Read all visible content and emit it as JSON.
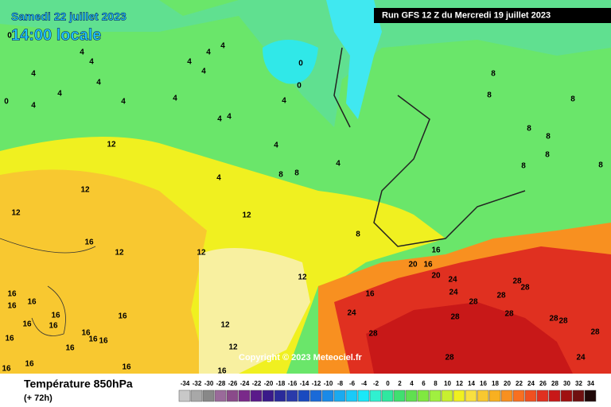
{
  "header": {
    "date": "Samedi 22 juillet 2023",
    "time": "14:00 locale",
    "run": "Run GFS 12 Z du Mercredi 19 juillet 2023"
  },
  "copyright": "Copyright © 2023 Meteociel.fr",
  "footer": {
    "title": "Température 850hPa",
    "lead": "(+ 72h)"
  },
  "legend": {
    "values": [
      -34,
      -32,
      -30,
      -28,
      -26,
      -24,
      -22,
      -20,
      -18,
      -16,
      -14,
      -12,
      -10,
      -8,
      -6,
      -4,
      -2,
      0,
      2,
      4,
      6,
      8,
      10,
      12,
      14,
      16,
      18,
      20,
      22,
      24,
      26,
      28,
      30,
      32,
      34
    ],
    "colors": [
      "#c8c8c8",
      "#a8a8a8",
      "#888888",
      "#9a6a9a",
      "#8a4a8a",
      "#7a2a8a",
      "#5a1a8a",
      "#3a1a8a",
      "#2a2a9a",
      "#2a3aaa",
      "#1a4ac0",
      "#1a6ad8",
      "#1a8ae8",
      "#1aaaf0",
      "#1acaf8",
      "#1ae8f8",
      "#30f0d0",
      "#30e8a0",
      "#40e070",
      "#60e050",
      "#80e840",
      "#a0f040",
      "#c8f030",
      "#f0f020",
      "#f8e040",
      "#f8c830",
      "#f8b020",
      "#f89020",
      "#f87020",
      "#f05020",
      "#e03020",
      "#c81818",
      "#a01010",
      "#701010",
      "#200808"
    ]
  },
  "contour_labels": [
    4,
    4,
    4,
    4,
    4,
    4,
    4,
    4,
    4,
    4,
    4,
    4,
    4,
    4,
    4,
    4,
    4,
    4,
    12,
    12,
    12,
    12,
    12,
    12,
    12,
    12,
    12,
    0,
    0,
    0,
    8,
    8,
    8,
    8,
    8,
    8,
    8,
    8,
    8,
    8,
    8,
    16,
    16,
    20,
    20,
    24,
    24,
    28,
    28,
    28,
    28,
    28,
    28,
    28,
    28,
    28,
    28,
    28,
    24,
    24,
    16,
    16,
    16,
    16,
    16,
    16,
    16,
    16,
    16,
    16,
    16,
    16,
    16,
    16,
    16,
    16,
    16,
    16,
    0
  ]
}
